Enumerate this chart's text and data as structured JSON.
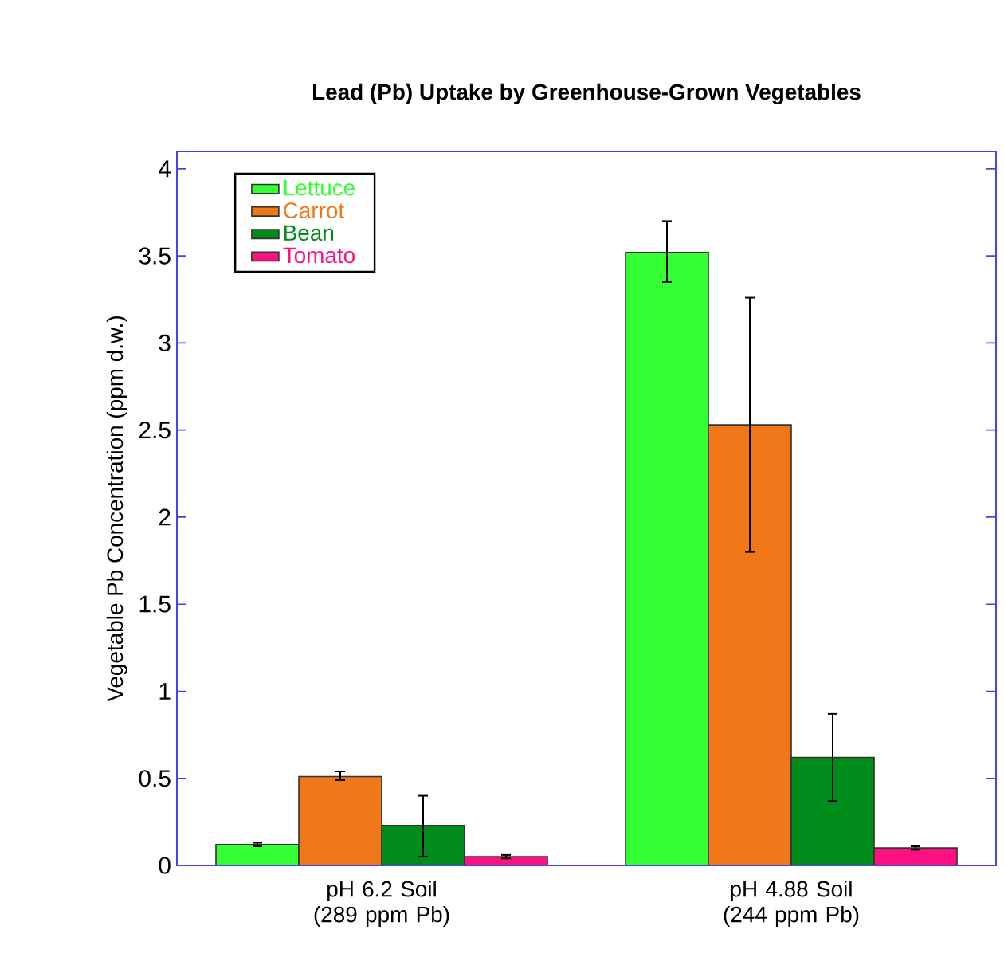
{
  "chart_data": {
    "type": "bar",
    "title": "Lead (Pb) Uptake by Greenhouse-Grown Vegetables",
    "ylabel": "Vegetable Pb Concentration (ppm d.w.)",
    "categories": [
      "pH 6.2 Soil (289 ppm Pb)",
      "pH 4.88 Soil (244 ppm Pb)"
    ],
    "series": [
      {
        "name": "Lettuce",
        "color": "#33ff33",
        "values": [
          0.12,
          3.52
        ],
        "errors": [
          [
            0.11,
            0.13
          ],
          [
            3.35,
            3.7
          ]
        ]
      },
      {
        "name": "Carrot",
        "color": "#f07818",
        "values": [
          0.51,
          2.53
        ],
        "errors": [
          [
            0.49,
            0.54
          ],
          [
            1.8,
            3.26
          ]
        ]
      },
      {
        "name": "Bean",
        "color": "#008c1a",
        "values": [
          0.23,
          0.62
        ],
        "errors": [
          [
            0.05,
            0.4
          ],
          [
            0.37,
            0.87
          ]
        ]
      },
      {
        "name": "Tomato",
        "color": "#ff1080",
        "values": [
          0.05,
          0.1
        ],
        "errors": [
          [
            0.04,
            0.06
          ],
          [
            0.09,
            0.11
          ]
        ]
      }
    ],
    "ylim": [
      0,
      4.1
    ],
    "yticks": [
      0,
      0.5,
      1,
      1.5,
      2,
      2.5,
      3,
      3.5,
      4
    ],
    "grid": false,
    "legend": "top left"
  }
}
